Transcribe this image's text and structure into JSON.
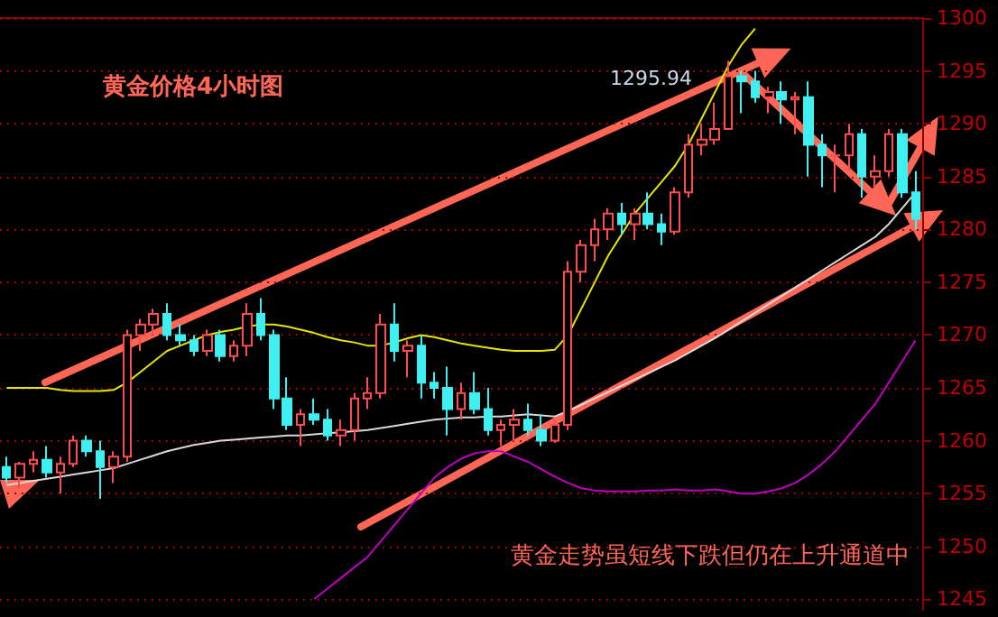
{
  "chart_data": {
    "type": "candlestick",
    "title": "黄金价格4小时图",
    "annotations": [
      "1295.94",
      "黄金走势虽短线下跌但仍在上升通道中"
    ],
    "categories": [
      null,
      null,
      null,
      null,
      null,
      null,
      null,
      null,
      null,
      null,
      null,
      null,
      null,
      null,
      null,
      null,
      null,
      null,
      null,
      null,
      null,
      null,
      null,
      null,
      null,
      null,
      null,
      null,
      null,
      null,
      null,
      null,
      null,
      null,
      null,
      null,
      null,
      null,
      null,
      null,
      null,
      null,
      null,
      null,
      null,
      null,
      null,
      null,
      null,
      null,
      null,
      null,
      null,
      null,
      null,
      null,
      null,
      null,
      null,
      null,
      null,
      null,
      null,
      null,
      null,
      null,
      null,
      null,
      null
    ],
    "colors": [
      "#40f0f0",
      "#ff4d4d",
      "#ff4d4d",
      "#40f0f0",
      "#ff4d4d",
      "#ff4d4d",
      "#40f0f0",
      "#40f0f0",
      "#ff4d4d",
      "#ff4d4d",
      "#ff4d4d",
      "#ff4d4d",
      "#40f0f0",
      "#40f0f0",
      "#40f0f0",
      "#ff4d4d",
      "#40f0f0",
      "#ff4d4d",
      "#ff4d4d",
      "#40f0f0",
      "#40f0f0",
      "#40f0f0",
      "#ff4d4d",
      "#40f0f0",
      "#40f0f0",
      "#ff4d4d",
      "#ff4d4d",
      "#ff4d4d",
      "#ff4d4d",
      "#40f0f0",
      "#ff4d4d",
      "#40f0f0",
      "#40f0f0",
      "#40f0f0",
      "#ff4d4d",
      "#40f0f0",
      "#40f0f0",
      "#ff4d4d",
      "#ff4d4d",
      "#40f0f0",
      "#40f0f0",
      "#ff4d4d",
      "#ff4d4d",
      "#ff4d4d",
      "#ff4d4d",
      "#ff4d4d",
      "#40f0f0",
      "#ff4d4d",
      "#40f0f0",
      "#40f0f0",
      "#ff4d4d",
      "#ff4d4d",
      "#ff4d4d",
      "#ff4d4d",
      "#ff4d4d",
      "#40f0f0",
      "#40f0f0",
      "#ff4d4d",
      "#40f0f0",
      "#ff4d4d",
      "#40f0f0",
      "#40f0f0",
      "#ff4d4d",
      "#ff4d4d",
      "#40f0f0",
      "#ff4d4d",
      "#ff4d4d",
      "#40f0f0",
      "#40f0f0"
    ],
    "ohlc": [
      [
        1257.5,
        1258.5,
        1256,
        1256.5
      ],
      [
        1256.5,
        1258,
        1255.5,
        1257.8
      ],
      [
        1257.8,
        1259,
        1257,
        1258.2
      ],
      [
        1258.2,
        1259.5,
        1256.5,
        1257
      ],
      [
        1257,
        1258.5,
        1255,
        1257.8
      ],
      [
        1257.8,
        1260.5,
        1257.5,
        1260
      ],
      [
        1260,
        1260.5,
        1258.5,
        1259
      ],
      [
        1259,
        1260,
        1254.5,
        1257.5
      ],
      [
        1257.5,
        1259,
        1256,
        1258.5
      ],
      [
        1258.5,
        1270.5,
        1258,
        1270
      ],
      [
        1270,
        1271.5,
        1268.5,
        1271
      ],
      [
        1271,
        1272.5,
        1270,
        1272
      ],
      [
        1272,
        1273,
        1269.5,
        1270
      ],
      [
        1270,
        1271,
        1269,
        1269.5
      ],
      [
        1269.5,
        1270,
        1268,
        1268.5
      ],
      [
        1268.5,
        1270.5,
        1268,
        1270
      ],
      [
        1270,
        1270.5,
        1267.5,
        1268
      ],
      [
        1268,
        1269.5,
        1267.5,
        1269
      ],
      [
        1269,
        1273,
        1268,
        1272
      ],
      [
        1272,
        1273.5,
        1269.5,
        1270
      ],
      [
        1270,
        1270.5,
        1263,
        1264
      ],
      [
        1264,
        1266,
        1261,
        1261.5
      ],
      [
        1261.5,
        1263,
        1259.5,
        1262.5
      ],
      [
        1262.5,
        1264,
        1261.5,
        1262
      ],
      [
        1262,
        1263,
        1260,
        1260.5
      ],
      [
        1260.5,
        1262,
        1259.5,
        1261
      ],
      [
        1261,
        1264.5,
        1260,
        1264
      ],
      [
        1264,
        1266,
        1263,
        1264.5
      ],
      [
        1264.5,
        1272,
        1264,
        1271
      ],
      [
        1271,
        1273,
        1267.5,
        1268.5
      ],
      [
        1268.5,
        1269.5,
        1266,
        1269
      ],
      [
        1269,
        1270,
        1264,
        1265.5
      ],
      [
        1265.5,
        1266.5,
        1264,
        1265
      ],
      [
        1265,
        1267,
        1260.5,
        1263
      ],
      [
        1263,
        1265.5,
        1262,
        1264.5
      ],
      [
        1264.5,
        1266.5,
        1262.5,
        1263
      ],
      [
        1263,
        1265,
        1260.5,
        1261
      ],
      [
        1261,
        1262,
        1259.5,
        1261.5
      ],
      [
        1261.5,
        1263,
        1260,
        1262
      ],
      [
        1262,
        1263.5,
        1260.5,
        1261
      ],
      [
        1261,
        1262.5,
        1259.5,
        1260
      ],
      [
        1260,
        1262,
        1259.8,
        1261.5
      ],
      [
        1261.5,
        1277,
        1261,
        1276
      ],
      [
        1276,
        1279,
        1275,
        1278.5
      ],
      [
        1278.5,
        1281,
        1277,
        1280
      ],
      [
        1280,
        1282,
        1279,
        1281.5
      ],
      [
        1281.5,
        1282.5,
        1279.5,
        1280.5
      ],
      [
        1280.5,
        1282,
        1279,
        1281.5
      ],
      [
        1281.5,
        1283.5,
        1280,
        1280.5
      ],
      [
        1280.5,
        1281.5,
        1278.5,
        1279.8
      ],
      [
        1279.8,
        1284,
        1279.5,
        1283.5
      ],
      [
        1283.5,
        1289,
        1283,
        1288
      ],
      [
        1288,
        1290,
        1287,
        1288.5
      ],
      [
        1288.5,
        1292,
        1288,
        1289.5
      ],
      [
        1289.5,
        1295.94,
        1289.5,
        1294.5
      ],
      [
        1294.5,
        1295,
        1291,
        1294
      ],
      [
        1294,
        1295,
        1292,
        1292.5
      ],
      [
        1292.5,
        1293.5,
        1291,
        1293
      ],
      [
        1293,
        1294,
        1290,
        1292.3
      ],
      [
        1292.3,
        1293,
        1289,
        1292.5
      ],
      [
        1292.5,
        1294,
        1285,
        1288
      ],
      [
        1288,
        1289,
        1284,
        1287
      ],
      [
        1287,
        1288,
        1283.5,
        1287
      ],
      [
        1287,
        1290,
        1285.5,
        1289
      ],
      [
        1289,
        1289.5,
        1283,
        1285
      ],
      [
        1285,
        1287,
        1284,
        1285.5
      ],
      [
        1285.5,
        1289.5,
        1285,
        1289
      ],
      [
        1289,
        1289.5,
        1283,
        1283.5
      ],
      [
        1283.5,
        1285.5,
        1280,
        1281
      ]
    ],
    "series": [
      {
        "type": "line",
        "color": "#e6e600",
        "values": [
          1265,
          1265,
          1265,
          1265,
          1264.8,
          1264.7,
          1264.7,
          1264.7,
          1264.8,
          1265.5,
          1266.5,
          1267.5,
          1268.5,
          1269,
          1269.5,
          1270,
          1270.3,
          1270.5,
          1270.8,
          1271,
          1271,
          1270.8,
          1270.5,
          1270.2,
          1269.8,
          1269.5,
          1269.3,
          1269,
          1269,
          1269.3,
          1269.7,
          1270,
          1269.8,
          1269.5,
          1269.2,
          1269,
          1268.8,
          1268.6,
          1268.5,
          1268.5,
          1268.5,
          1268.6,
          1270,
          1272.5,
          1275,
          1277.5,
          1279.5,
          1281.5,
          1283,
          1284.5,
          1286,
          1288,
          1290.5,
          1293,
          1295.5,
          1297.5,
          1299,
          null,
          null,
          null,
          null,
          null,
          null,
          null,
          null,
          null,
          null,
          null,
          null
        ]
      },
      {
        "type": "line",
        "color": "#d8d8d8",
        "values": [
          1255.8,
          1256,
          1256.2,
          1256.4,
          1256.6,
          1256.8,
          1257,
          1257.2,
          1257.4,
          1257.8,
          1258.2,
          1258.6,
          1259,
          1259.3,
          1259.6,
          1259.8,
          1260,
          1260.1,
          1260.2,
          1260.3,
          1260.4,
          1260.5,
          1260.5,
          1260.6,
          1260.7,
          1260.8,
          1260.9,
          1261,
          1261.2,
          1261.4,
          1261.6,
          1261.8,
          1262,
          1262.1,
          1262.2,
          1262.2,
          1262.3,
          1262.3,
          1262.4,
          1262.5,
          1262.4,
          1262.3,
          1262.8,
          1263.4,
          1264,
          1264.6,
          1265.2,
          1265.8,
          1266.4,
          1267,
          1267.6,
          1268.3,
          1269,
          1269.7,
          1270.5,
          1271.3,
          1272.1,
          1272.9,
          1273.7,
          1274.5,
          1275.3,
          1276.1,
          1276.9,
          1277.7,
          1278.5,
          1279.3,
          1280.5,
          1282,
          1283.5
        ]
      },
      {
        "type": "line",
        "color": "#c000c0",
        "values": [
          null,
          null,
          null,
          null,
          null,
          null,
          null,
          null,
          null,
          null,
          null,
          null,
          null,
          null,
          null,
          null,
          null,
          null,
          null,
          null,
          null,
          null,
          null,
          1245,
          1246,
          1247,
          1248,
          1249,
          1250.5,
          1252,
          1253.5,
          1255,
          1256.5,
          1257.5,
          1258.3,
          1258.8,
          1259,
          1259,
          1258.5,
          1258,
          1257.3,
          1256.6,
          1256,
          1255.5,
          1255.3,
          1255.2,
          1255.2,
          1255.2,
          1255.3,
          1255.3,
          1255.4,
          1255.3,
          1255.3,
          1255.4,
          1255.2,
          1255,
          1255,
          1255.2,
          1255.5,
          1256,
          1256.8,
          1257.8,
          1259,
          1260.5,
          1262,
          1263.5,
          1265.5,
          1267.5,
          1269.5
        ]
      }
    ],
    "ylim": [
      1244,
      1300
    ],
    "yticks": [
      1245,
      1250,
      1255,
      1260,
      1265,
      1270,
      1275,
      1280,
      1285,
      1290,
      1295,
      1300
    ],
    "grid": "y"
  }
}
